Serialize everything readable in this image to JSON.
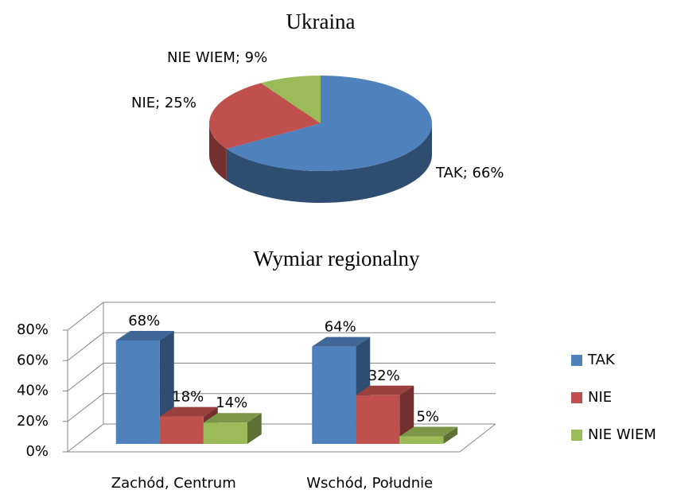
{
  "chart_data": [
    {
      "type": "pie",
      "title": "Ukraina",
      "categories": [
        "TAK",
        "NIE",
        "NIE WIEM"
      ],
      "values": [
        66,
        25,
        9
      ],
      "value_labels": [
        "TAK; 66%",
        "NIE; 25%",
        "NIE WIEM; 9%"
      ],
      "colors": [
        "#4f81bd",
        "#c0504d",
        "#9bbb59"
      ]
    },
    {
      "type": "bar",
      "title": "Wymiar regionalny",
      "categories": [
        "Zachód, Centrum",
        "Wschód, Południe"
      ],
      "series": [
        {
          "name": "TAK",
          "color": "#4f81bd",
          "values": [
            68,
            64
          ],
          "value_labels": [
            "68%",
            "64%"
          ]
        },
        {
          "name": "NIE",
          "color": "#c0504d",
          "values": [
            18,
            32
          ],
          "value_labels": [
            "18%",
            "32%"
          ]
        },
        {
          "name": "NIE WIEM",
          "color": "#9bbb59",
          "values": [
            14,
            5
          ],
          "value_labels": [
            "14%",
            "5%"
          ]
        }
      ],
      "ylim": [
        0,
        80
      ],
      "yticks": [
        {
          "value": 0,
          "label": "0%"
        },
        {
          "value": 20,
          "label": "20%"
        },
        {
          "value": 40,
          "label": "40%"
        },
        {
          "value": 60,
          "label": "60%"
        },
        {
          "value": 80,
          "label": "80%"
        }
      ],
      "grid": true,
      "legend": "right"
    }
  ]
}
